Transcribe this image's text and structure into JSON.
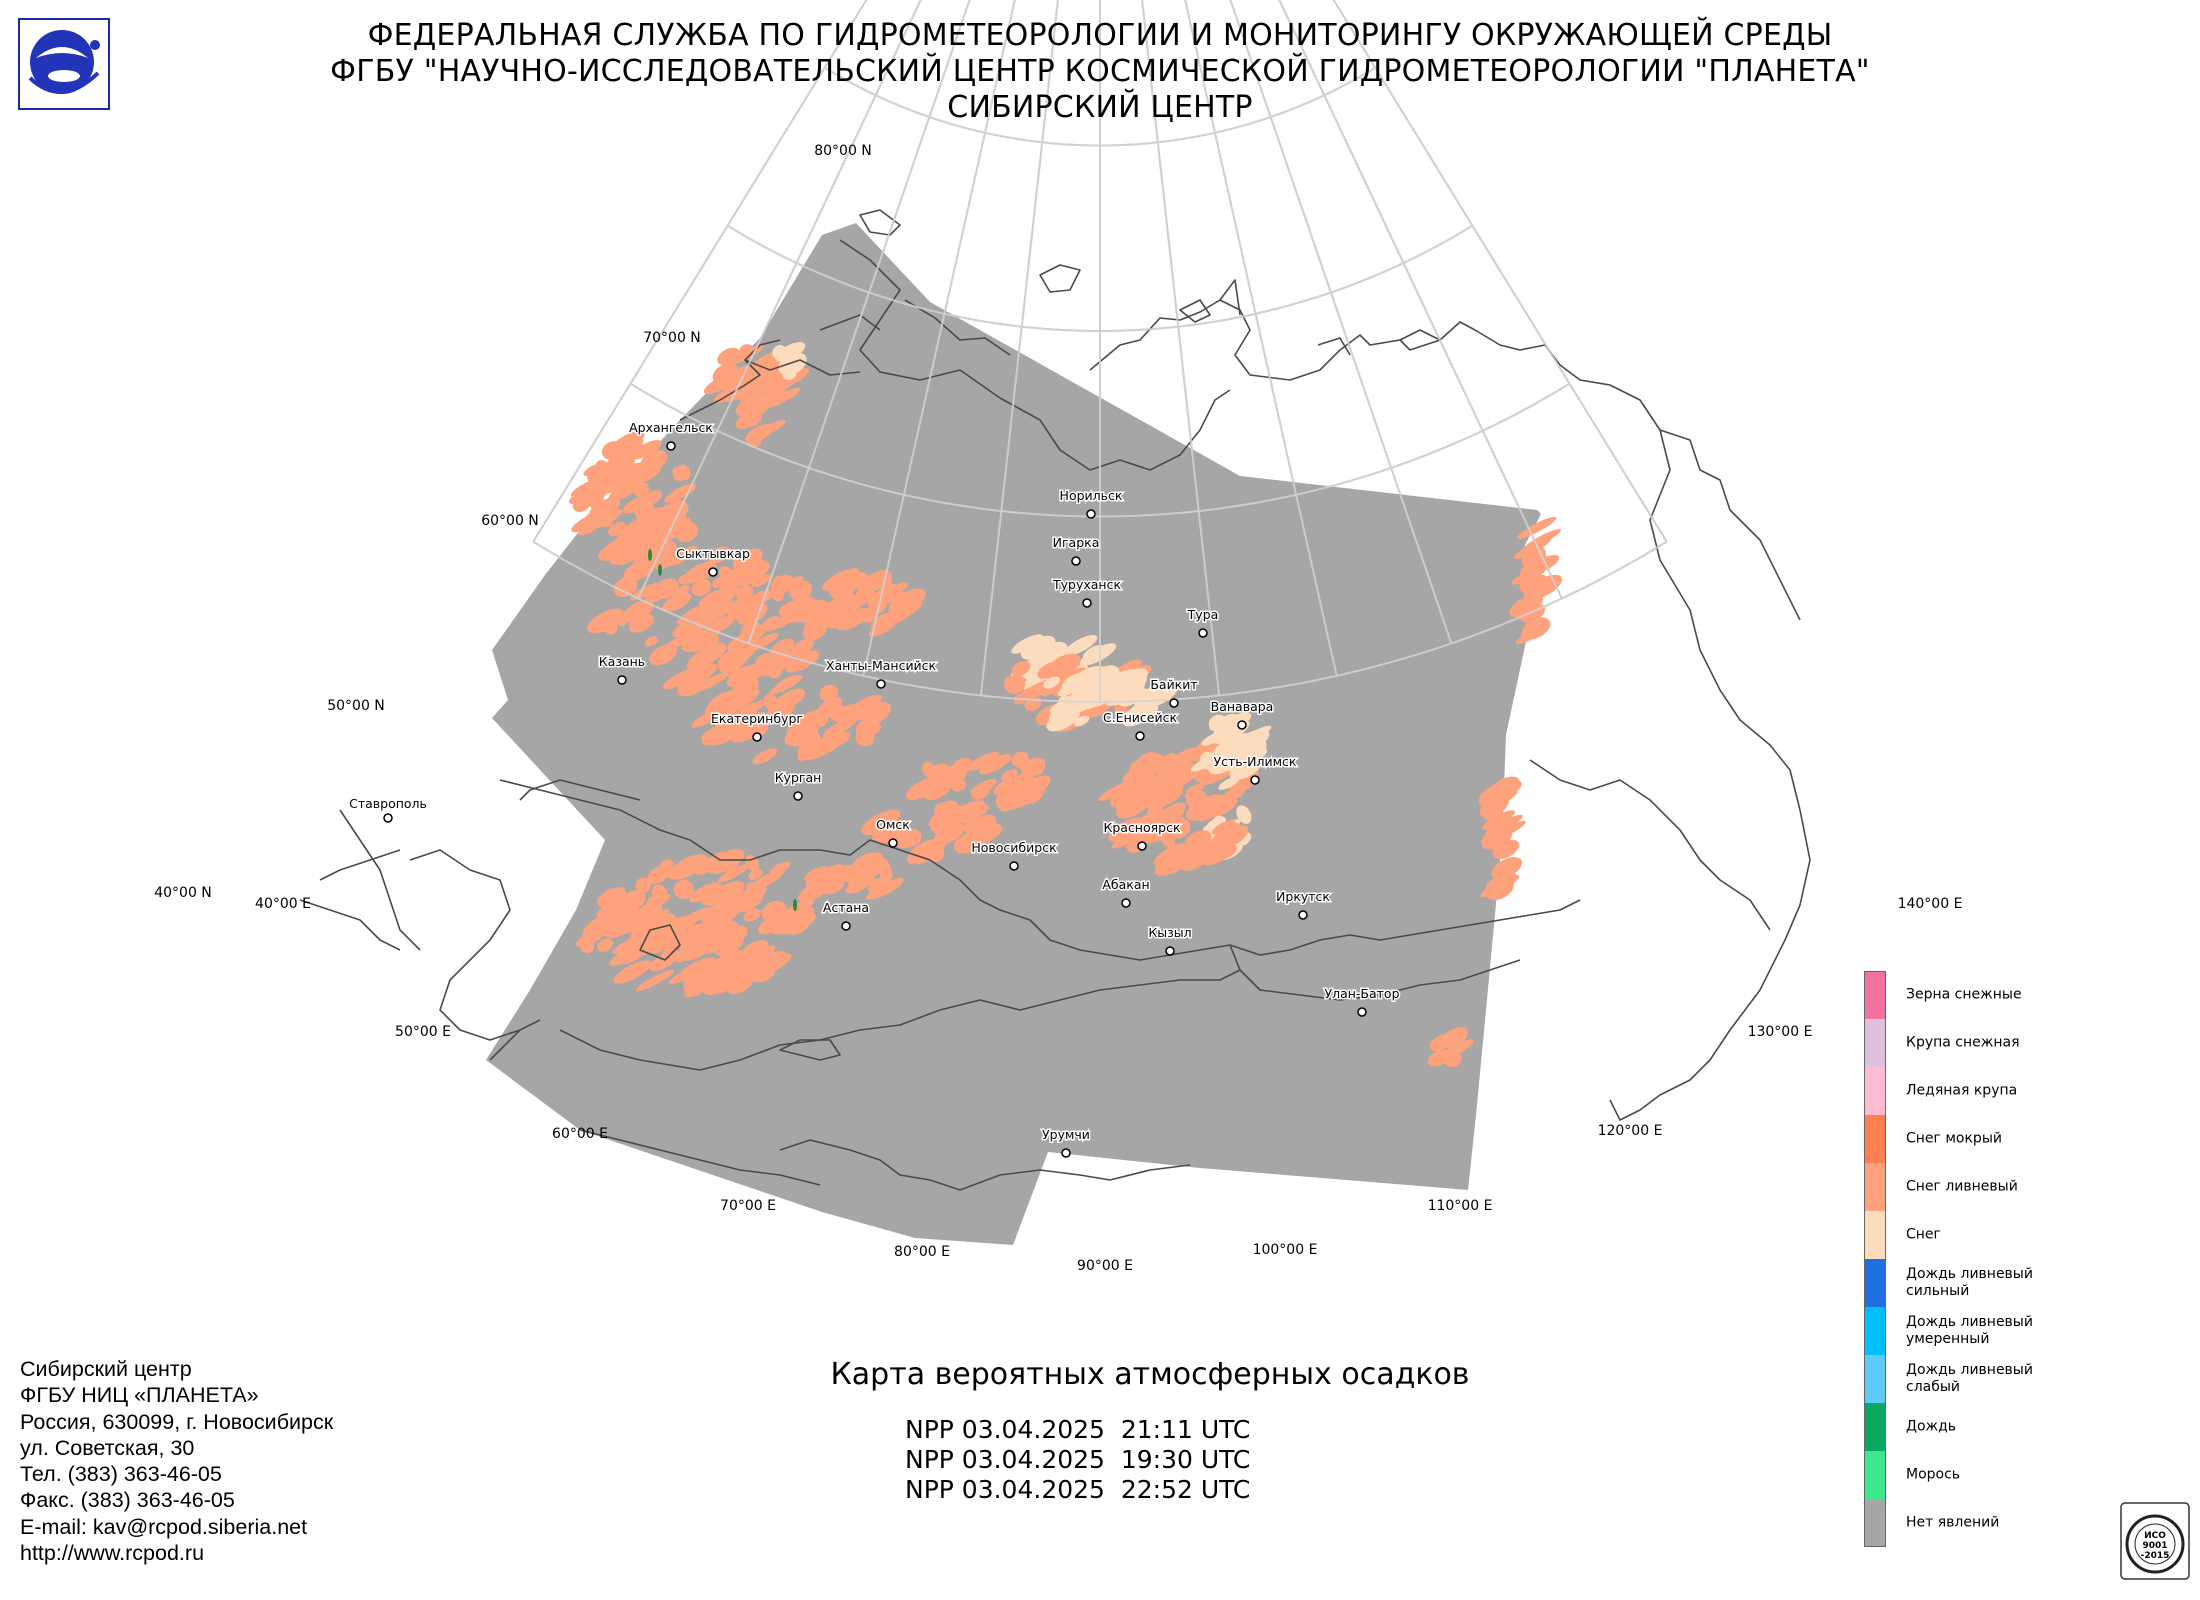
{
  "header": {
    "line1": "ФЕДЕРАЛЬНАЯ СЛУЖБА ПО ГИДРОМЕТЕОРОЛОГИИ И МОНИТОРИНГУ ОКРУЖАЮЩЕЙ СРЕДЫ",
    "line2": "ФГБУ \"НАУЧНО-ИССЛЕДОВАТЕЛЬСКИЙ ЦЕНТР КОСМИЧЕСКОЙ ГИДРОМЕТЕОРОЛОГИИ \"ПЛАНЕТА\"",
    "line3": "СИБИРСКИЙ ЦЕНТР"
  },
  "map": {
    "lat_labels": [
      "80°00 N",
      "70°00 N",
      "60°00 N",
      "50°00 N",
      "40°00 N"
    ],
    "lon_labels": [
      "40°00 E",
      "50°00 E",
      "60°00 E",
      "70°00 E",
      "80°00 E",
      "90°00 E",
      "100°00 E",
      "110°00 E",
      "120°00 E",
      "130°00 E",
      "140°00 E"
    ],
    "cities": [
      "Архангельск",
      "Сыктывкар",
      "Казань",
      "Ставрополь",
      "Екатеринбург",
      "Курган",
      "Ханты-Мансийск",
      "Омск",
      "Астана",
      "Новосибирск",
      "Норильск",
      "Игарка",
      "Туруханск",
      "Тура",
      "Байкит",
      "Ванавара",
      "С.Енисейск",
      "Усть-Илимск",
      "Красноярск",
      "Абакан",
      "Кызыл",
      "Иркутск",
      "Улан-Батор",
      "Урумчи"
    ],
    "colors": {
      "no_phenomena": "#a6a6a6",
      "snow": "#fcdcbc",
      "snow_shower": "#fda27d",
      "border": "#555555",
      "graticule": "#c8c8c8"
    }
  },
  "legend": {
    "items": [
      {
        "label": "Зерна снежные",
        "color": "#f472a0"
      },
      {
        "label": "Крупа снежная",
        "color": "#dcc0dc"
      },
      {
        "label": "Ледяная крупа",
        "color": "#ffbcd0"
      },
      {
        "label": "Снег мокрый",
        "color": "#ff7f50"
      },
      {
        "label": "Снег ливневый",
        "color": "#fda27d"
      },
      {
        "label": "Снег",
        "color": "#fcdcbc"
      },
      {
        "label": "Дождь ливневый\nсильный",
        "color": "#1e6fe0"
      },
      {
        "label": "Дождь ливневый\nумеренный",
        "color": "#00bfff"
      },
      {
        "label": "Дождь ливневый\nслабый",
        "color": "#5ccbf5"
      },
      {
        "label": "Дождь",
        "color": "#0aa860"
      },
      {
        "label": "Морось",
        "color": "#3ee88a"
      },
      {
        "label": "Нет явлений",
        "color": "#a6a6a6"
      }
    ]
  },
  "contacts": [
    "Сибирский центр",
    "ФГБУ НИЦ «ПЛАНЕТА»",
    "Россия, 630099, г. Новосибирск",
    "ул. Советская, 30",
    "Тел. (383) 363-46-05",
    "Факс. (383) 363-46-05",
    "E-mail: kav@rcpod.siberia.net",
    "http://www.rcpod.ru"
  ],
  "map_title": "Карта вероятных атмосферных осадков",
  "passes": [
    "NPP 03.04.2025  21:11 UTC",
    "NPP 03.04.2025  19:30 UTC",
    "NPP 03.04.2025  22:52 UTC"
  ],
  "iso_badge": {
    "text1": "ИСО",
    "text2": "9001",
    "text3": "-2015"
  }
}
